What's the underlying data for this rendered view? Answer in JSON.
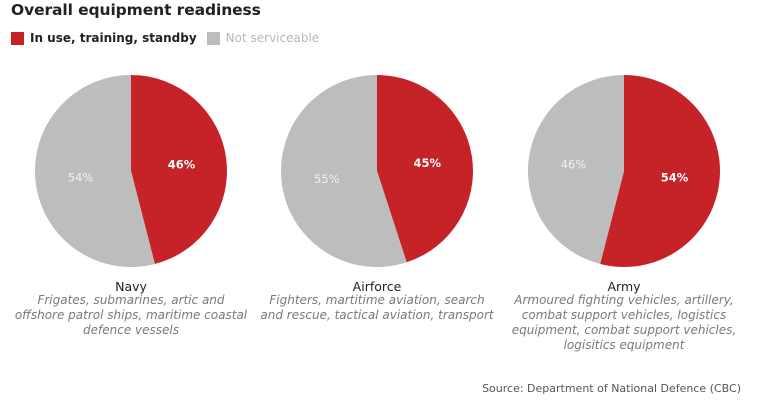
{
  "title": "Overall equipment readiness",
  "legend": [
    {
      "label": "In use, training, standby",
      "color": "#c62329"
    },
    {
      "label": "Not serviceable",
      "color": "#bdbdbd"
    }
  ],
  "chart_data": {
    "type": "pie",
    "title": "Overall equipment readiness",
    "series_names": [
      "In use, training, standby",
      "Not serviceable"
    ],
    "colors": [
      "#c62329",
      "#bdbdbd"
    ],
    "charts": [
      {
        "name": "Navy",
        "description": "Frigates, submarines, artic and offshore patrol ships, maritime coastal defence vessels",
        "values": [
          46,
          54
        ],
        "labels": [
          "46%",
          "54%"
        ]
      },
      {
        "name": "Airforce",
        "description": "Fighters, martitime aviation, search and rescue, tactical aviation, transport",
        "values": [
          45,
          55
        ],
        "labels": [
          "45%",
          "55%"
        ]
      },
      {
        "name": "Army",
        "description": "Armoured fighting vehicles, artillery, combat support vehicles, logistics equipment, combat support vehicles, logisitics equipment",
        "values": [
          54,
          46
        ],
        "labels": [
          "54%",
          "46%"
        ]
      }
    ]
  },
  "source": "Source: Department of National Defence (CBC)"
}
